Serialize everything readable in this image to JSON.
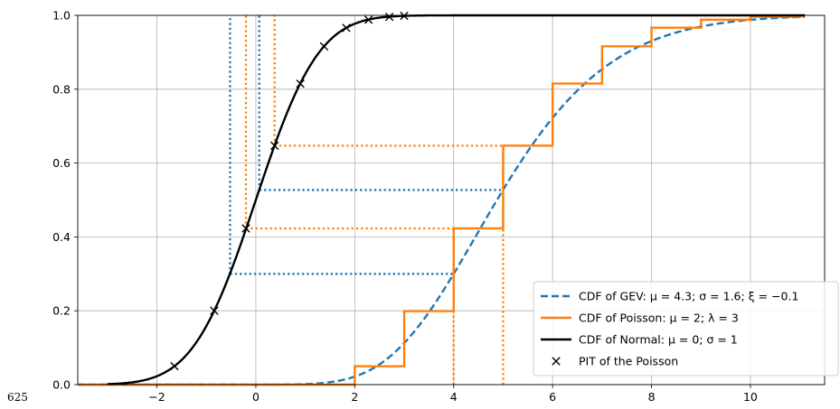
{
  "margin_note": "625",
  "chart_data": {
    "type": "line",
    "xlim": [
      -3.6,
      11.5
    ],
    "ylim": [
      0,
      1.0
    ],
    "grid": true,
    "legend_position": "lower right",
    "x_ticks": [
      {
        "v": -2,
        "label": "−2"
      },
      {
        "v": 0,
        "label": "0"
      },
      {
        "v": 2,
        "label": "2"
      },
      {
        "v": 4,
        "label": "4"
      },
      {
        "v": 6,
        "label": "6"
      },
      {
        "v": 8,
        "label": "8"
      },
      {
        "v": 10,
        "label": "10"
      }
    ],
    "y_ticks": [
      {
        "v": 0,
        "label": "0.0"
      },
      {
        "v": 0.2,
        "label": "0.2"
      },
      {
        "v": 0.4,
        "label": "0.4"
      },
      {
        "v": 0.6,
        "label": "0.6"
      },
      {
        "v": 0.8,
        "label": "0.8"
      },
      {
        "v": 1.0,
        "label": "1.0"
      }
    ],
    "series": [
      {
        "name": "CDF of GEV: μ = 4.3; σ = 1.6; ξ = −0.1",
        "color": "#1f77b4",
        "style": "dashed",
        "kind": "gev",
        "params": {
          "mu": 4.3,
          "sigma": 1.6,
          "xi": -0.1
        },
        "x_range": [
          -3.6,
          11.1
        ]
      },
      {
        "name": "CDF of Poisson: μ = 2; λ = 3",
        "color": "#ff7f0e",
        "style": "step",
        "kind": "poisson",
        "params": {
          "mu": 2,
          "lambda": 3
        },
        "x_range": [
          -3.6,
          11.1
        ]
      },
      {
        "name": "CDF of Normal: μ = 0; σ = 1",
        "color": "#000000",
        "style": "solid",
        "kind": "normal",
        "params": {
          "mu": 0,
          "sigma": 1
        },
        "x_range": [
          -3,
          11.1
        ]
      },
      {
        "name": "PIT of the Poisson",
        "color": "#000000",
        "style": "marker-x",
        "kind": "points",
        "points": [
          [
            -1.645,
            0.05
          ],
          [
            -0.84,
            0.2
          ],
          [
            -0.2,
            0.423
          ],
          [
            0.38,
            0.647
          ],
          [
            0.9,
            0.815
          ],
          [
            1.38,
            0.916
          ],
          [
            1.83,
            0.966
          ],
          [
            2.28,
            0.988
          ],
          [
            2.7,
            0.996
          ],
          [
            3.0,
            0.9987
          ]
        ]
      }
    ],
    "guides": [
      {
        "color": "#1f77b4",
        "segments": [
          [
            [
              -0.52,
              0.3
            ],
            [
              4.0,
              0.3
            ]
          ],
          [
            [
              -0.52,
              0.3
            ],
            [
              -0.52,
              1.0
            ]
          ],
          [
            [
              0.07,
              0.527
            ],
            [
              5.0,
              0.527
            ]
          ],
          [
            [
              0.07,
              0.527
            ],
            [
              0.07,
              1.0
            ]
          ]
        ]
      },
      {
        "color": "#ff7f0e",
        "segments": [
          [
            [
              -0.2,
              0.423
            ],
            [
              4.0,
              0.423
            ]
          ],
          [
            [
              -0.2,
              0.423
            ],
            [
              -0.2,
              1.0
            ]
          ],
          [
            [
              0.38,
              0.647
            ],
            [
              5.0,
              0.647
            ]
          ],
          [
            [
              0.38,
              0.647
            ],
            [
              0.38,
              1.0
            ]
          ],
          [
            [
              4.0,
              0
            ],
            [
              4.0,
              0.423
            ]
          ],
          [
            [
              5.0,
              0
            ],
            [
              5.0,
              0.647
            ]
          ]
        ]
      }
    ]
  }
}
